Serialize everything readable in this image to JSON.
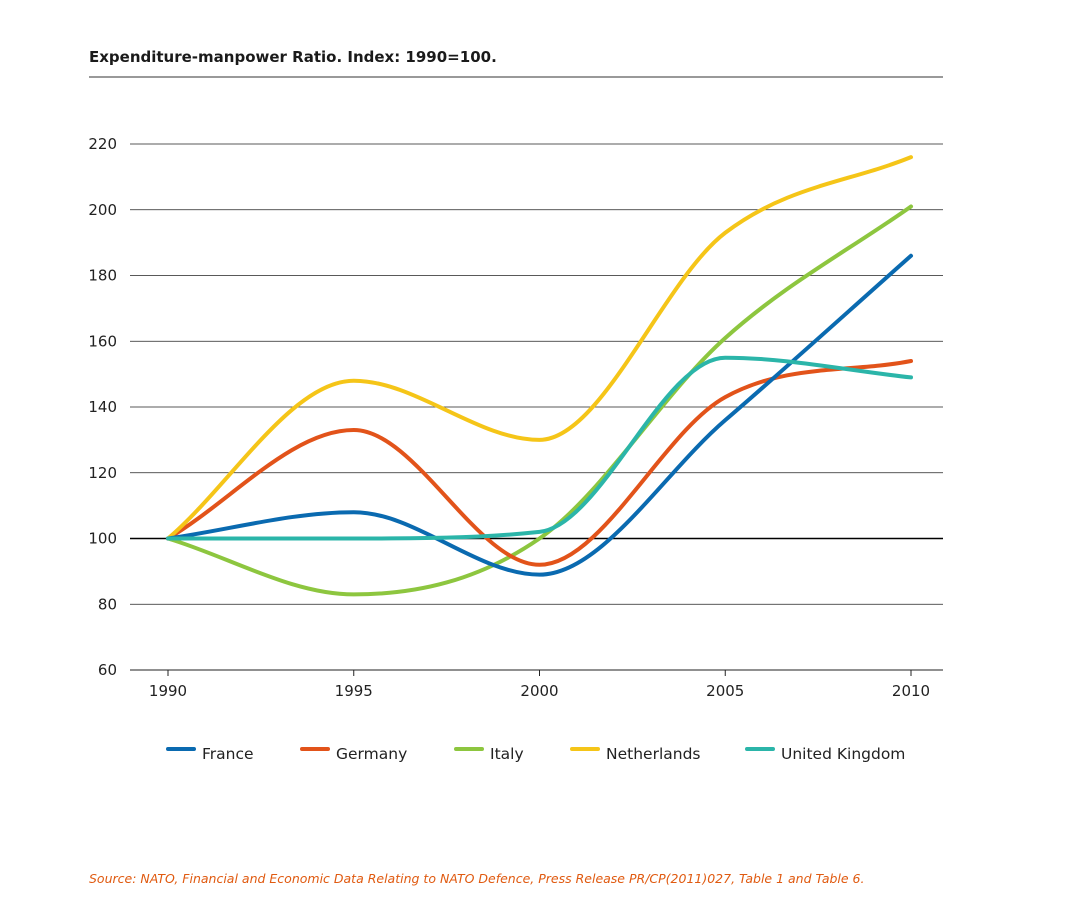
{
  "chart_data": {
    "type": "line",
    "title": "Expenditure-manpower Ratio. Index: 1990=100.",
    "xlabel": "",
    "ylabel": "",
    "x": [
      1990,
      1995,
      2000,
      2005,
      2010
    ],
    "x_tick_labels": [
      "1990",
      "1995",
      "2000",
      "2005",
      "2010"
    ],
    "y_ticks": [
      60,
      80,
      100,
      120,
      140,
      160,
      180,
      200,
      220
    ],
    "ylim": [
      60,
      220
    ],
    "grid": true,
    "legend_position": "bottom",
    "series": [
      {
        "name": "France",
        "color": "#0a6ab0",
        "values": [
          100,
          108,
          89,
          136,
          186
        ]
      },
      {
        "name": "Germany",
        "color": "#e2531a",
        "values": [
          100,
          133,
          92,
          143,
          154
        ]
      },
      {
        "name": "Italy",
        "color": "#8dc63f",
        "values": [
          100,
          83,
          100,
          161,
          201
        ]
      },
      {
        "name": "Netherlands",
        "color": "#f5c518",
        "values": [
          100,
          148,
          130,
          193,
          216
        ]
      },
      {
        "name": "United Kingdom",
        "color": "#2bb5a9",
        "values": [
          100,
          100,
          102,
          155,
          149
        ]
      }
    ]
  },
  "source": "Source: NATO, Financial and Economic Data Relating to NATO Defence, Press Release PR/CP(2011)027, Table 1 and Table 6."
}
